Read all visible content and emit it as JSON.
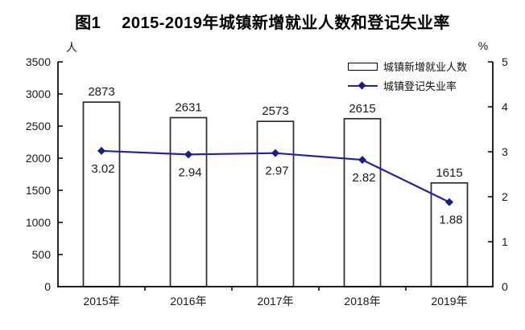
{
  "title": {
    "figure_label": "图1",
    "text": "2015-2019年城镇新增就业人数和登记失业率"
  },
  "chart_data": {
    "type": "combo",
    "categories": [
      "2015年",
      "2016年",
      "2017年",
      "2018年",
      "2019年"
    ],
    "series": [
      {
        "name": "城镇新增就业人数",
        "type": "bar",
        "axis": "left",
        "values": [
          2873,
          2631,
          2573,
          2615,
          1615
        ],
        "labels": [
          "2873",
          "2631",
          "2573",
          "2615",
          "1615"
        ]
      },
      {
        "name": "城镇登记失业率",
        "type": "line",
        "axis": "right",
        "values": [
          3.02,
          2.94,
          2.97,
          2.82,
          1.88
        ],
        "labels": [
          "3.02",
          "2.94",
          "2.97",
          "2.82",
          "1.88"
        ]
      }
    ],
    "axes": {
      "left": {
        "unit": "人",
        "min": 0,
        "max": 3500,
        "step": 500
      },
      "right": {
        "unit": "%",
        "min": 0,
        "max": 5,
        "step": 1
      }
    },
    "legend_position": "top-right-inside",
    "grid": false,
    "colors": {
      "bar_fill": "#ffffff",
      "bar_border": "#2b2b2b",
      "line": "#23239b",
      "marker": "#1c1c86",
      "text": "#1a1a1a"
    }
  }
}
